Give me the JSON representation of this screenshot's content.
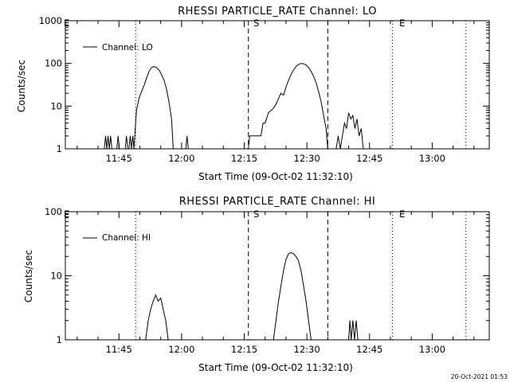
{
  "chart_data": [
    {
      "type": "line",
      "title": "RHESSI PARTICLE_RATE Channel: LO",
      "xlabel": "Start Time (09-Oct-02 11:32:10)",
      "ylabel": "Counts/sec",
      "yscale": "log",
      "ylim": [
        1,
        1000
      ],
      "xlim": [
        "11:32:10",
        "13:13:40"
      ],
      "x_ticks": [
        "11:45",
        "12:00",
        "12:15",
        "12:30",
        "12:45",
        "13:00"
      ],
      "y_ticks": [
        "1",
        "10",
        "100",
        "1000"
      ],
      "grid": false,
      "legend": {
        "position": "top-left",
        "label": "Channel: LO"
      },
      "markers": [
        {
          "time": "11:49:00",
          "style": "dotted",
          "label": ""
        },
        {
          "time": "12:16:00",
          "style": "dashed",
          "label": "S"
        },
        {
          "time": "12:35:00",
          "style": "dashed",
          "label": ""
        },
        {
          "time": "12:50:30",
          "style": "dotted",
          "label": "E"
        },
        {
          "time": "13:08:00",
          "style": "dotted",
          "label": ""
        }
      ],
      "corner_label": "E",
      "series": [
        {
          "name": "Channel: LO",
          "points": [
            [
              "11:41:30",
              1
            ],
            [
              "11:41:48",
              2
            ],
            [
              "11:42:06",
              1
            ],
            [
              "11:42:24",
              2
            ],
            [
              "11:42:42",
              1
            ],
            [
              "11:43:00",
              2
            ],
            [
              "11:43:18",
              1
            ],
            [
              "11:44:30",
              1
            ],
            [
              "11:44:48",
              2
            ],
            [
              "11:45:06",
              1
            ],
            [
              "11:46:30",
              1
            ],
            [
              "11:46:48",
              2
            ],
            [
              "11:47:06",
              1
            ],
            [
              "11:47:24",
              1
            ],
            [
              "11:47:42",
              2
            ],
            [
              "11:48:00",
              1
            ],
            [
              "11:48:18",
              2
            ],
            [
              "11:48:36",
              1
            ],
            [
              "11:48:54",
              3
            ],
            [
              "11:49:12",
              8
            ],
            [
              "11:49:48",
              15
            ],
            [
              "11:50:24",
              22
            ],
            [
              "11:51:00",
              30
            ],
            [
              "11:51:36",
              45
            ],
            [
              "11:52:12",
              65
            ],
            [
              "11:52:48",
              80
            ],
            [
              "11:53:24",
              85
            ],
            [
              "11:54:00",
              80
            ],
            [
              "11:54:36",
              70
            ],
            [
              "11:55:12",
              55
            ],
            [
              "11:55:48",
              40
            ],
            [
              "11:56:24",
              25
            ],
            [
              "11:57:00",
              12
            ],
            [
              "11:57:36",
              5
            ],
            [
              "11:58:00",
              1
            ],
            [
              "12:01:00",
              1
            ],
            [
              "12:01:18",
              2
            ],
            [
              "12:01:36",
              1
            ],
            [
              "12:16:00",
              1
            ],
            [
              "12:16:18",
              2
            ],
            [
              "12:17:00",
              2
            ],
            [
              "12:18:00",
              2
            ],
            [
              "12:19:00",
              2
            ],
            [
              "12:19:30",
              4
            ],
            [
              "12:20:00",
              4
            ],
            [
              "12:20:48",
              7
            ],
            [
              "12:21:30",
              8
            ],
            [
              "12:22:00",
              9
            ],
            [
              "12:22:36",
              11
            ],
            [
              "12:23:12",
              15
            ],
            [
              "12:23:48",
              20
            ],
            [
              "12:24:24",
              18
            ],
            [
              "12:25:00",
              28
            ],
            [
              "12:25:36",
              40
            ],
            [
              "12:26:12",
              55
            ],
            [
              "12:26:48",
              70
            ],
            [
              "12:27:24",
              85
            ],
            [
              "12:28:00",
              95
            ],
            [
              "12:28:36",
              100
            ],
            [
              "12:29:12",
              98
            ],
            [
              "12:29:48",
              92
            ],
            [
              "12:30:24",
              80
            ],
            [
              "12:31:00",
              65
            ],
            [
              "12:31:36",
              50
            ],
            [
              "12:32:12",
              35
            ],
            [
              "12:32:48",
              22
            ],
            [
              "12:33:24",
              13
            ],
            [
              "12:34:00",
              6
            ],
            [
              "12:34:36",
              3
            ],
            [
              "12:35:00",
              1
            ],
            [
              "12:37:00",
              1
            ],
            [
              "12:37:30",
              2
            ],
            [
              "12:38:00",
              1
            ],
            [
              "12:38:30",
              2
            ],
            [
              "12:39:00",
              4
            ],
            [
              "12:39:30",
              3
            ],
            [
              "12:40:00",
              7
            ],
            [
              "12:40:30",
              5
            ],
            [
              "12:41:00",
              6
            ],
            [
              "12:41:30",
              3
            ],
            [
              "12:42:00",
              5
            ],
            [
              "12:42:30",
              2
            ],
            [
              "12:43:00",
              3
            ],
            [
              "12:43:30",
              1
            ]
          ]
        }
      ]
    },
    {
      "type": "line",
      "title": "RHESSI PARTICLE_RATE Channel: HI",
      "xlabel": "Start Time (09-Oct-02 11:32:10)",
      "ylabel": "Counts/sec",
      "yscale": "log",
      "ylim": [
        1,
        100
      ],
      "xlim": [
        "11:32:10",
        "13:13:40"
      ],
      "x_ticks": [
        "11:45",
        "12:00",
        "12:15",
        "12:30",
        "12:45",
        "13:00"
      ],
      "y_ticks": [
        "1",
        "10",
        "100"
      ],
      "grid": false,
      "legend": {
        "position": "top-left",
        "label": "Channel: HI"
      },
      "markers": [
        {
          "time": "11:49:00",
          "style": "dotted",
          "label": ""
        },
        {
          "time": "12:16:00",
          "style": "dashed",
          "label": "S"
        },
        {
          "time": "12:35:00",
          "style": "dashed",
          "label": ""
        },
        {
          "time": "12:50:30",
          "style": "dotted",
          "label": "E"
        },
        {
          "time": "13:08:00",
          "style": "dotted",
          "label": ""
        }
      ],
      "corner_label": "E",
      "series": [
        {
          "name": "Channel: HI",
          "points": [
            [
              "11:51:24",
              1
            ],
            [
              "11:52:00",
              2
            ],
            [
              "11:52:36",
              3
            ],
            [
              "11:53:12",
              4
            ],
            [
              "11:53:48",
              5
            ],
            [
              "11:54:24",
              4
            ],
            [
              "11:55:00",
              4.5
            ],
            [
              "11:55:36",
              3
            ],
            [
              "11:56:12",
              2
            ],
            [
              "11:56:48",
              1
            ],
            [
              "12:22:00",
              1
            ],
            [
              "12:22:36",
              2
            ],
            [
              "12:23:12",
              4
            ],
            [
              "12:23:48",
              7
            ],
            [
              "12:24:24",
              12
            ],
            [
              "12:25:00",
              18
            ],
            [
              "12:25:36",
              22
            ],
            [
              "12:26:12",
              23
            ],
            [
              "12:26:48",
              22
            ],
            [
              "12:27:24",
              20
            ],
            [
              "12:28:00",
              17
            ],
            [
              "12:28:36",
              12
            ],
            [
              "12:29:12",
              7
            ],
            [
              "12:29:48",
              4
            ],
            [
              "12:30:24",
              2
            ],
            [
              "12:31:00",
              1
            ],
            [
              "12:40:00",
              1
            ],
            [
              "12:40:18",
              2
            ],
            [
              "12:40:36",
              1
            ],
            [
              "12:41:00",
              2
            ],
            [
              "12:41:24",
              1
            ],
            [
              "12:41:48",
              2
            ],
            [
              "12:42:12",
              1
            ]
          ]
        }
      ]
    }
  ],
  "footer": {
    "timestamp": "20-Oct-2021 01:53"
  }
}
